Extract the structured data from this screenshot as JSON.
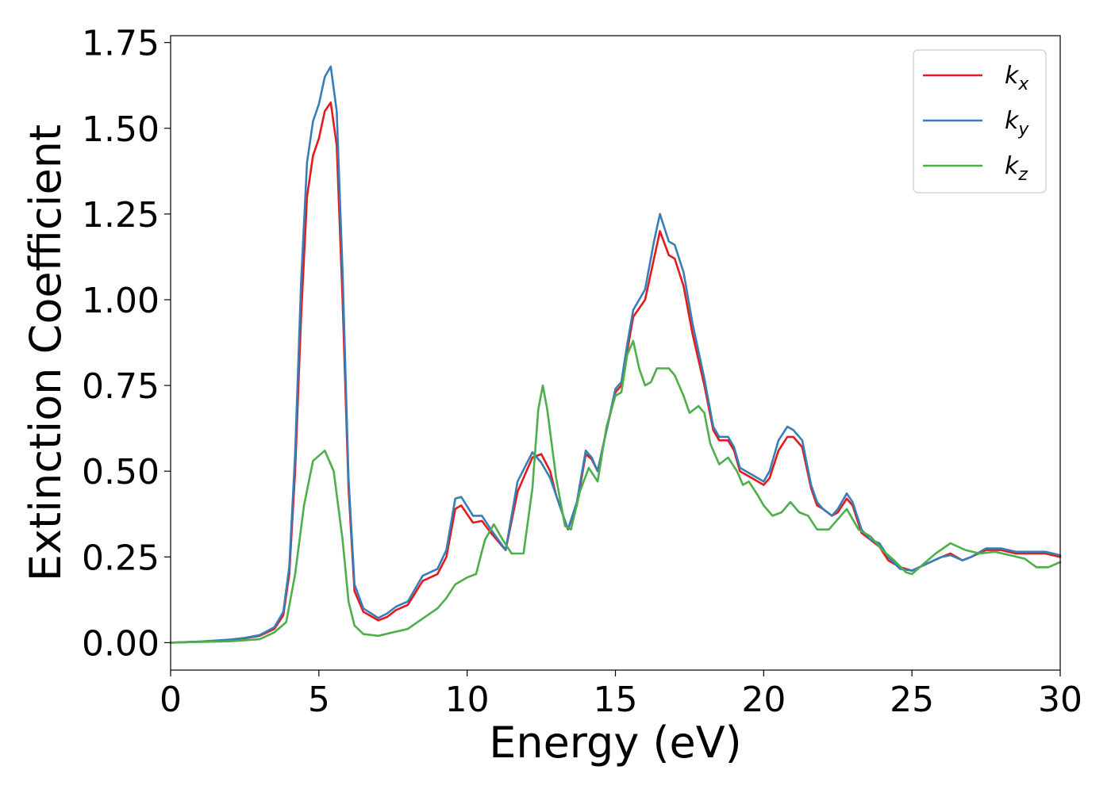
{
  "chart_data": {
    "type": "line",
    "title": "",
    "xlabel": "Energy (eV)",
    "ylabel": "Extinction Coefficient",
    "xlim": [
      0,
      30
    ],
    "ylim": [
      -0.08,
      1.77
    ],
    "xticks": [
      0,
      5,
      10,
      15,
      20,
      25,
      30
    ],
    "xtick_labels": [
      "0",
      "5",
      "10",
      "15",
      "20",
      "25",
      "30"
    ],
    "yticks": [
      0,
      0.25,
      0.5,
      0.75,
      1.0,
      1.25,
      1.5,
      1.75
    ],
    "ytick_labels": [
      "0.00",
      "0.25",
      "0.50",
      "0.75",
      "1.00",
      "1.25",
      "1.50",
      "1.75"
    ],
    "grid": false,
    "legend_position": "top-right",
    "series": [
      {
        "name": "k_x",
        "legend_base": "k",
        "legend_sub": "x",
        "color": "#e41a1c",
        "points": [
          [
            0,
            0
          ],
          [
            1,
            0.003
          ],
          [
            2,
            0.008
          ],
          [
            2.5,
            0.013
          ],
          [
            3,
            0.02
          ],
          [
            3.5,
            0.04
          ],
          [
            3.8,
            0.08
          ],
          [
            4,
            0.2
          ],
          [
            4.2,
            0.5
          ],
          [
            4.4,
            0.95
          ],
          [
            4.6,
            1.3
          ],
          [
            4.8,
            1.42
          ],
          [
            5,
            1.47
          ],
          [
            5.2,
            1.55
          ],
          [
            5.4,
            1.575
          ],
          [
            5.6,
            1.45
          ],
          [
            5.8,
            1.0
          ],
          [
            6,
            0.45
          ],
          [
            6.2,
            0.15
          ],
          [
            6.5,
            0.09
          ],
          [
            7,
            0.065
          ],
          [
            7.3,
            0.075
          ],
          [
            7.6,
            0.095
          ],
          [
            8,
            0.11
          ],
          [
            8.5,
            0.18
          ],
          [
            9,
            0.2
          ],
          [
            9.3,
            0.25
          ],
          [
            9.6,
            0.39
          ],
          [
            9.8,
            0.4
          ],
          [
            10.2,
            0.35
          ],
          [
            10.5,
            0.355
          ],
          [
            10.8,
            0.32
          ],
          [
            11.3,
            0.27
          ],
          [
            11.7,
            0.44
          ],
          [
            12.2,
            0.54
          ],
          [
            12.5,
            0.55
          ],
          [
            12.8,
            0.5
          ],
          [
            13,
            0.43
          ],
          [
            13.4,
            0.33
          ],
          [
            13.7,
            0.4
          ],
          [
            14,
            0.55
          ],
          [
            14.2,
            0.535
          ],
          [
            14.4,
            0.5
          ],
          [
            14.7,
            0.62
          ],
          [
            15,
            0.73
          ],
          [
            15.2,
            0.75
          ],
          [
            15.4,
            0.85
          ],
          [
            15.6,
            0.95
          ],
          [
            16,
            1.0
          ],
          [
            16.3,
            1.12
          ],
          [
            16.5,
            1.2
          ],
          [
            16.8,
            1.13
          ],
          [
            17,
            1.12
          ],
          [
            17.3,
            1.04
          ],
          [
            17.6,
            0.9
          ],
          [
            18,
            0.75
          ],
          [
            18.3,
            0.62
          ],
          [
            18.5,
            0.59
          ],
          [
            18.8,
            0.59
          ],
          [
            19,
            0.56
          ],
          [
            19.2,
            0.5
          ],
          [
            19.6,
            0.48
          ],
          [
            20,
            0.46
          ],
          [
            20.2,
            0.48
          ],
          [
            20.5,
            0.56
          ],
          [
            20.8,
            0.6
          ],
          [
            21,
            0.6
          ],
          [
            21.3,
            0.57
          ],
          [
            21.6,
            0.45
          ],
          [
            21.8,
            0.4
          ],
          [
            22,
            0.39
          ],
          [
            22.3,
            0.37
          ],
          [
            22.5,
            0.38
          ],
          [
            22.8,
            0.42
          ],
          [
            23,
            0.4
          ],
          [
            23.3,
            0.32
          ],
          [
            23.6,
            0.3
          ],
          [
            23.9,
            0.28
          ],
          [
            24.2,
            0.24
          ],
          [
            24.6,
            0.22
          ],
          [
            25,
            0.21
          ],
          [
            25.5,
            0.23
          ],
          [
            26,
            0.25
          ],
          [
            26.3,
            0.26
          ],
          [
            26.7,
            0.24
          ],
          [
            27,
            0.25
          ],
          [
            27.5,
            0.27
          ],
          [
            28,
            0.27
          ],
          [
            28.5,
            0.26
          ],
          [
            29,
            0.26
          ],
          [
            29.5,
            0.26
          ],
          [
            30,
            0.25
          ]
        ]
      },
      {
        "name": "k_y",
        "legend_base": "k",
        "legend_sub": "y",
        "color": "#377eb8",
        "points": [
          [
            0,
            0
          ],
          [
            1,
            0.003
          ],
          [
            2,
            0.009
          ],
          [
            2.5,
            0.014
          ],
          [
            3,
            0.022
          ],
          [
            3.5,
            0.045
          ],
          [
            3.8,
            0.09
          ],
          [
            4,
            0.22
          ],
          [
            4.2,
            0.55
          ],
          [
            4.4,
            1.05
          ],
          [
            4.6,
            1.4
          ],
          [
            4.8,
            1.52
          ],
          [
            5,
            1.57
          ],
          [
            5.2,
            1.65
          ],
          [
            5.4,
            1.68
          ],
          [
            5.6,
            1.55
          ],
          [
            5.8,
            1.08
          ],
          [
            6,
            0.48
          ],
          [
            6.2,
            0.17
          ],
          [
            6.5,
            0.1
          ],
          [
            7,
            0.072
          ],
          [
            7.3,
            0.085
          ],
          [
            7.6,
            0.105
          ],
          [
            8,
            0.12
          ],
          [
            8.5,
            0.195
          ],
          [
            9,
            0.215
          ],
          [
            9.3,
            0.27
          ],
          [
            9.6,
            0.42
          ],
          [
            9.8,
            0.425
          ],
          [
            10.2,
            0.37
          ],
          [
            10.5,
            0.37
          ],
          [
            10.8,
            0.33
          ],
          [
            11.3,
            0.27
          ],
          [
            11.7,
            0.47
          ],
          [
            12.2,
            0.555
          ],
          [
            12.5,
            0.525
          ],
          [
            12.8,
            0.48
          ],
          [
            13,
            0.43
          ],
          [
            13.4,
            0.33
          ],
          [
            13.7,
            0.41
          ],
          [
            14,
            0.56
          ],
          [
            14.2,
            0.54
          ],
          [
            14.4,
            0.5
          ],
          [
            14.7,
            0.62
          ],
          [
            15,
            0.74
          ],
          [
            15.2,
            0.76
          ],
          [
            15.4,
            0.87
          ],
          [
            15.6,
            0.97
          ],
          [
            16,
            1.03
          ],
          [
            16.3,
            1.17
          ],
          [
            16.5,
            1.25
          ],
          [
            16.8,
            1.17
          ],
          [
            17,
            1.16
          ],
          [
            17.3,
            1.08
          ],
          [
            17.6,
            0.93
          ],
          [
            18,
            0.77
          ],
          [
            18.3,
            0.63
          ],
          [
            18.5,
            0.6
          ],
          [
            18.8,
            0.6
          ],
          [
            19,
            0.57
          ],
          [
            19.2,
            0.51
          ],
          [
            19.6,
            0.49
          ],
          [
            20,
            0.47
          ],
          [
            20.2,
            0.5
          ],
          [
            20.5,
            0.59
          ],
          [
            20.8,
            0.63
          ],
          [
            21,
            0.62
          ],
          [
            21.3,
            0.59
          ],
          [
            21.6,
            0.46
          ],
          [
            21.8,
            0.41
          ],
          [
            22,
            0.39
          ],
          [
            22.3,
            0.37
          ],
          [
            22.5,
            0.39
          ],
          [
            22.8,
            0.435
          ],
          [
            23,
            0.41
          ],
          [
            23.3,
            0.33
          ],
          [
            23.6,
            0.3
          ],
          [
            23.9,
            0.29
          ],
          [
            24.2,
            0.25
          ],
          [
            24.6,
            0.215
          ],
          [
            25,
            0.21
          ],
          [
            25.5,
            0.23
          ],
          [
            26,
            0.25
          ],
          [
            26.3,
            0.255
          ],
          [
            26.7,
            0.24
          ],
          [
            27,
            0.25
          ],
          [
            27.5,
            0.275
          ],
          [
            28,
            0.275
          ],
          [
            28.5,
            0.265
          ],
          [
            29,
            0.265
          ],
          [
            29.5,
            0.265
          ],
          [
            30,
            0.255
          ]
        ]
      },
      {
        "name": "k_z",
        "legend_base": "k",
        "legend_sub": "z",
        "color": "#4daf4a",
        "points": [
          [
            0,
            0
          ],
          [
            1,
            0.002
          ],
          [
            2,
            0.004
          ],
          [
            3,
            0.01
          ],
          [
            3.5,
            0.03
          ],
          [
            3.9,
            0.06
          ],
          [
            4.2,
            0.2
          ],
          [
            4.5,
            0.4
          ],
          [
            4.8,
            0.53
          ],
          [
            5.2,
            0.56
          ],
          [
            5.5,
            0.5
          ],
          [
            5.8,
            0.3
          ],
          [
            6,
            0.12
          ],
          [
            6.2,
            0.05
          ],
          [
            6.5,
            0.025
          ],
          [
            7,
            0.02
          ],
          [
            7.5,
            0.03
          ],
          [
            8,
            0.04
          ],
          [
            8.5,
            0.07
          ],
          [
            9,
            0.1
          ],
          [
            9.3,
            0.13
          ],
          [
            9.6,
            0.17
          ],
          [
            10,
            0.19
          ],
          [
            10.3,
            0.2
          ],
          [
            10.6,
            0.3
          ],
          [
            10.9,
            0.345
          ],
          [
            11.2,
            0.3
          ],
          [
            11.5,
            0.26
          ],
          [
            11.9,
            0.26
          ],
          [
            12.2,
            0.45
          ],
          [
            12.4,
            0.68
          ],
          [
            12.55,
            0.75
          ],
          [
            12.7,
            0.68
          ],
          [
            13,
            0.48
          ],
          [
            13.3,
            0.34
          ],
          [
            13.5,
            0.33
          ],
          [
            13.8,
            0.44
          ],
          [
            14.1,
            0.51
          ],
          [
            14.4,
            0.47
          ],
          [
            14.7,
            0.63
          ],
          [
            15,
            0.72
          ],
          [
            15.2,
            0.73
          ],
          [
            15.4,
            0.84
          ],
          [
            15.6,
            0.88
          ],
          [
            15.8,
            0.8
          ],
          [
            16,
            0.75
          ],
          [
            16.2,
            0.76
          ],
          [
            16.4,
            0.8
          ],
          [
            16.8,
            0.8
          ],
          [
            17,
            0.78
          ],
          [
            17.3,
            0.72
          ],
          [
            17.5,
            0.67
          ],
          [
            17.8,
            0.69
          ],
          [
            18,
            0.67
          ],
          [
            18.2,
            0.58
          ],
          [
            18.5,
            0.52
          ],
          [
            18.8,
            0.54
          ],
          [
            19.1,
            0.5
          ],
          [
            19.3,
            0.46
          ],
          [
            19.5,
            0.47
          ],
          [
            19.8,
            0.43
          ],
          [
            20,
            0.4
          ],
          [
            20.3,
            0.37
          ],
          [
            20.6,
            0.38
          ],
          [
            20.9,
            0.41
          ],
          [
            21.2,
            0.38
          ],
          [
            21.5,
            0.37
          ],
          [
            21.8,
            0.33
          ],
          [
            22.2,
            0.33
          ],
          [
            22.5,
            0.36
          ],
          [
            22.8,
            0.39
          ],
          [
            23.2,
            0.33
          ],
          [
            23.6,
            0.31
          ],
          [
            24,
            0.27
          ],
          [
            24.4,
            0.24
          ],
          [
            24.8,
            0.205
          ],
          [
            25,
            0.2
          ],
          [
            25.4,
            0.23
          ],
          [
            25.8,
            0.26
          ],
          [
            26.3,
            0.29
          ],
          [
            26.8,
            0.27
          ],
          [
            27.3,
            0.26
          ],
          [
            27.8,
            0.265
          ],
          [
            28.3,
            0.255
          ],
          [
            28.8,
            0.245
          ],
          [
            29.2,
            0.22
          ],
          [
            29.6,
            0.22
          ],
          [
            30,
            0.235
          ]
        ]
      }
    ]
  }
}
